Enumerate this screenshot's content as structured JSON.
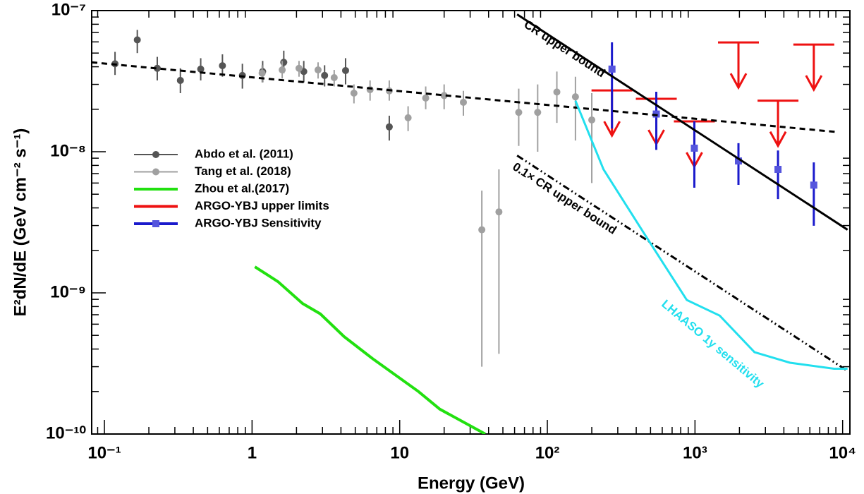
{
  "chart_data": {
    "type": "scatter",
    "xlabel": "Energy (GeV)",
    "ylabel": "E²dN/dE (GeV cm⁻² s⁻¹)",
    "log_x": true,
    "log_y": true,
    "xlim": [
      0.082,
      11200
    ],
    "ylim": [
      1e-10,
      1e-07
    ],
    "xticks": [
      {
        "value": 0.1,
        "label": "10⁻¹"
      },
      1,
      10,
      {
        "value": 100,
        "label": "10²"
      },
      {
        "value": 1000,
        "label": "10³"
      },
      {
        "value": 10000,
        "label": "10⁴"
      }
    ],
    "yticks": [
      {
        "value": 1e-10,
        "label": "10⁻¹⁰"
      },
      {
        "value": 1e-09,
        "label": "10⁻⁹"
      },
      {
        "value": 1e-08,
        "label": "10⁻⁸"
      },
      {
        "value": 1e-07,
        "label": "10⁻⁷"
      }
    ],
    "series": [
      {
        "name": "Abdo et al. (2011)",
        "color": "#555555",
        "kind": "points",
        "x": [
          0.118,
          0.167,
          0.228,
          0.327,
          0.449,
          0.63,
          0.86,
          1.18,
          1.64,
          2.24,
          3.1,
          4.3,
          8.5
        ],
        "values": [
          4.2e-08,
          6.2e-08,
          3.9e-08,
          3.2e-08,
          3.85e-08,
          4.07e-08,
          3.47e-08,
          3.7e-08,
          4.3e-08,
          3.7e-08,
          3.47e-08,
          3.76e-08,
          1.5e-08
        ],
        "y_low": [
          3.5e-08,
          5e-08,
          3.2e-08,
          2.6e-08,
          3.2e-08,
          3.4e-08,
          2.8e-08,
          3.1e-08,
          3.6e-08,
          3.1e-08,
          2.9e-08,
          3e-08,
          1.2e-08
        ],
        "y_high": [
          5.1e-08,
          7.3e-08,
          4.7e-08,
          3.9e-08,
          4.6e-08,
          4.9e-08,
          4.2e-08,
          4.4e-08,
          5.2e-08,
          4.4e-08,
          4.1e-08,
          4.6e-08,
          1.8e-08
        ]
      },
      {
        "name": "Tang et al. (2018)",
        "color": "#a0a0a0",
        "kind": "points",
        "x": [
          1.17,
          1.6,
          2.08,
          2.8,
          3.6,
          4.9,
          6.3,
          8.5,
          11.4,
          15,
          20,
          27,
          36,
          47,
          64,
          86,
          116,
          155,
          200
        ],
        "values": [
          3.6e-08,
          3.8e-08,
          3.9e-08,
          3.8e-08,
          3.35e-08,
          2.6e-08,
          2.75e-08,
          2.7e-08,
          1.74e-08,
          2.4e-08,
          2.5e-08,
          2.24e-08,
          2.8e-09,
          3.75e-09,
          1.9e-08,
          1.9e-08,
          2.65e-08,
          2.45e-08,
          1.68e-08
        ],
        "y_low": [
          3.1e-08,
          3.3e-08,
          3.4e-08,
          3.3e-08,
          2.9e-08,
          2.2e-08,
          2.3e-08,
          2.3e-08,
          1.4e-08,
          2e-08,
          2e-08,
          1.8e-08,
          3e-10,
          3.7e-10,
          1.1e-08,
          1e-08,
          1.6e-08,
          1.2e-08,
          6e-09
        ],
        "y_high": [
          4.1e-08,
          4.4e-08,
          4.4e-08,
          4.3e-08,
          3.8e-08,
          3e-08,
          3.2e-08,
          3.2e-08,
          2.1e-08,
          2.9e-08,
          3e-08,
          2.7e-08,
          5.3e-09,
          7.5e-09,
          2.8e-08,
          3e-08,
          3.7e-08,
          3.4e-08,
          2.6e-08
        ]
      },
      {
        "name": "Zhou et al.(2017)",
        "color": "#22e010",
        "kind": "line",
        "x": [
          1.045,
          1.5,
          2.2,
          2.9,
          4.2,
          6.6,
          13.4,
          18.7,
          38
        ],
        "values": [
          1.53e-09,
          1.2e-09,
          8.4e-10,
          7.1e-10,
          4.9e-10,
          3.4e-10,
          2e-10,
          1.5e-10,
          1e-10
        ]
      },
      {
        "name": "ARGO-YBJ upper limits",
        "color": "#ee1111",
        "kind": "upper_limit",
        "x": [
          274,
          547,
          990,
          1970,
          3650,
          6380
        ],
        "values": [
          2.72e-08,
          2.37e-08,
          1.64e-08,
          5.95e-08,
          2.3e-08,
          5.75e-08
        ]
      },
      {
        "name": "ARGO-YBJ Sensitivity",
        "color": "#1a1acc",
        "kind": "squares",
        "x": [
          274,
          547,
          990,
          1970,
          3650,
          6380
        ],
        "values": [
          3.85e-08,
          1.85e-08,
          1.06e-08,
          8.6e-09,
          7.5e-09,
          5.8e-09
        ],
        "y_low": [
          1.46e-08,
          1.03e-08,
          5.56e-09,
          5.82e-09,
          4.62e-09,
          2.99e-09
        ],
        "y_high": [
          5.96e-08,
          2.66e-08,
          1.64e-08,
          1.15e-08,
          1.02e-08,
          8.4e-09
        ]
      },
      {
        "color": "#000000",
        "kind": "line",
        "dash": "dashed",
        "x": [
          0.082,
          9100
        ],
        "values": [
          4.3e-08,
          1.38e-08
        ]
      },
      {
        "color": "#000000",
        "kind": "line",
        "x": [
          62.4,
          10800
        ],
        "values": [
          9.4e-08,
          2.8e-09
        ]
      },
      {
        "color": "#000000",
        "kind": "line",
        "dash": "dash-dot-dot",
        "x": [
          62.4,
          10800
        ],
        "values": [
          9.4e-09,
          2.8e-10
        ]
      },
      {
        "color": "#22dfee",
        "kind": "line",
        "x": [
          155,
          240,
          450,
          880,
          1470,
          2530,
          4400,
          8750,
          10800
        ],
        "values": [
          2.3e-08,
          7.5e-09,
          2.66e-09,
          8.9e-10,
          6.9e-10,
          3.8e-10,
          3.2e-10,
          2.9e-10,
          2.9e-10
        ]
      }
    ],
    "annotations": [
      {
        "text": "CR upper bound",
        "color": "#000000"
      },
      {
        "text": "0.1× CR upper bound",
        "color": "#000000"
      },
      {
        "text": "LHAASO 1y sensitivity",
        "color": "#22dfee"
      }
    ]
  }
}
